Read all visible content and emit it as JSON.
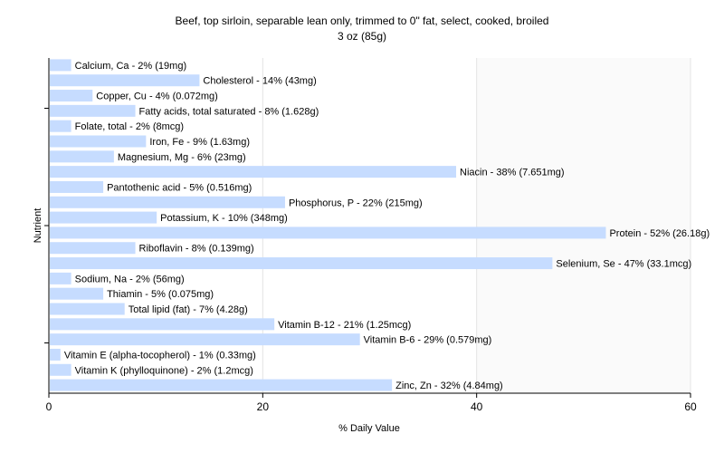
{
  "chart_data": {
    "type": "bar",
    "orientation": "horizontal",
    "title": "Beef, top sirloin, separable lean only, trimmed to 0\" fat, select, cooked, broiled",
    "subtitle": "3 oz (85g)",
    "xlabel": "% Daily Value",
    "ylabel": "Nutrient",
    "xlim": [
      0,
      60
    ],
    "xticks": [
      0,
      20,
      40,
      60
    ],
    "grid": true,
    "bar_color": "#c6dcff",
    "categories": [
      "Calcium, Ca",
      "Cholesterol",
      "Copper, Cu",
      "Fatty acids, total saturated",
      "Folate, total",
      "Iron, Fe",
      "Magnesium, Mg",
      "Niacin",
      "Pantothenic acid",
      "Phosphorus, P",
      "Potassium, K",
      "Protein",
      "Riboflavin",
      "Selenium, Se",
      "Sodium, Na",
      "Thiamin",
      "Total lipid (fat)",
      "Vitamin B-12",
      "Vitamin B-6",
      "Vitamin E (alpha-tocopherol)",
      "Vitamin K (phylloquinone)",
      "Zinc, Zn"
    ],
    "values": [
      2,
      14,
      4,
      8,
      2,
      9,
      6,
      38,
      5,
      22,
      10,
      52,
      8,
      47,
      2,
      5,
      7,
      21,
      29,
      1,
      2,
      32
    ],
    "labels": [
      "Calcium, Ca - 2% (19mg)",
      "Cholesterol - 14% (43mg)",
      "Copper, Cu - 4% (0.072mg)",
      "Fatty acids, total saturated - 8% (1.628g)",
      "Folate, total - 2% (8mcg)",
      "Iron, Fe - 9% (1.63mg)",
      "Magnesium, Mg - 6% (23mg)",
      "Niacin - 38% (7.651mg)",
      "Pantothenic acid - 5% (0.516mg)",
      "Phosphorus, P - 22% (215mg)",
      "Potassium, K - 10% (348mg)",
      "Protein - 52% (26.18g)",
      "Riboflavin - 8% (0.139mg)",
      "Selenium, Se - 47% (33.1mcg)",
      "Sodium, Na - 2% (56mg)",
      "Thiamin - 5% (0.075mg)",
      "Total lipid (fat) - 7% (4.28g)",
      "Vitamin B-12 - 21% (1.25mcg)",
      "Vitamin B-6 - 29% (0.579mg)",
      "Vitamin E (alpha-tocopherol) - 1% (0.33mg)",
      "Vitamin K (phylloquinone) - 2% (1.2mcg)",
      "Zinc, Zn - 32% (4.84mg)"
    ]
  }
}
